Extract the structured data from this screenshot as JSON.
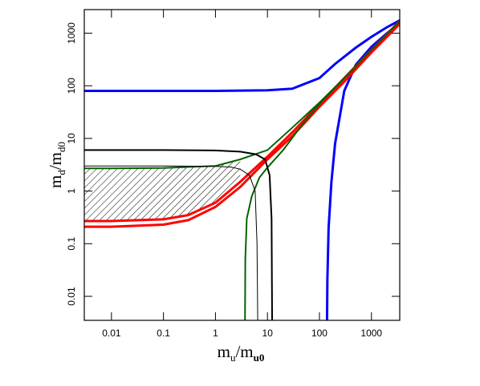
{
  "chart_data": {
    "type": "line",
    "xlabel": [
      "m",
      "u",
      "/m",
      "u0"
    ],
    "ylabel": [
      "m",
      "d",
      "/m",
      "d0"
    ],
    "xscale": "log",
    "yscale": "log",
    "xlim": [
      0.003,
      3500
    ],
    "ylim": [
      0.0035,
      2800
    ],
    "xticks": [
      0.01,
      0.1,
      1,
      10,
      100,
      1000
    ],
    "yticks": [
      0.01,
      0.1,
      1,
      10,
      100,
      1000
    ],
    "series": [
      {
        "color": "#0000ff",
        "width": 3,
        "x": [
          0.003,
          0.01,
          0.1,
          1,
          10,
          30,
          100,
          200,
          500,
          1000,
          2000,
          3500
        ],
        "values": [
          80,
          80,
          80,
          80,
          82,
          88,
          140,
          260,
          530,
          850,
          1300,
          1750
        ]
      },
      {
        "color": "#0000ff",
        "width": 3,
        "x": [
          140,
          142,
          150,
          170,
          200,
          300,
          500,
          1000,
          2000,
          3500
        ],
        "values": [
          0.0035,
          0.02,
          0.2,
          1.5,
          8,
          80,
          250,
          550,
          1000,
          1550
        ]
      },
      {
        "color": "#ff0000",
        "width": 3,
        "x": [
          0.003,
          0.01,
          0.1,
          0.3,
          1,
          3,
          10,
          30,
          100,
          300,
          1000,
          3500
        ],
        "values": [
          0.27,
          0.27,
          0.29,
          0.35,
          0.6,
          1.5,
          4.5,
          13,
          45,
          140,
          480,
          1700
        ]
      },
      {
        "color": "#ff0000",
        "width": 3,
        "x": [
          0.003,
          0.01,
          0.1,
          0.3,
          1,
          3,
          10,
          30,
          100,
          300,
          1000,
          3500
        ],
        "values": [
          0.21,
          0.21,
          0.23,
          0.28,
          0.5,
          1.2,
          4,
          11,
          40,
          120,
          430,
          1500
        ]
      },
      {
        "color": "#006400",
        "width": 2,
        "x": [
          0.003,
          0.01,
          0.1,
          1,
          3,
          10,
          30,
          100,
          300,
          1000,
          3500
        ],
        "values": [
          2.7,
          2.7,
          2.75,
          3,
          4,
          6,
          16,
          48,
          140,
          480,
          1700
        ]
      },
      {
        "color": "#006400",
        "width": 2,
        "x": [
          3.7,
          3.75,
          4,
          5,
          7,
          10,
          20,
          50,
          100,
          300
        ],
        "values": [
          0.0035,
          0.05,
          0.3,
          0.8,
          1.8,
          2.8,
          6,
          20,
          45,
          140
        ]
      },
      {
        "color": "#000000",
        "width": 2,
        "x": [
          0.003,
          0.01,
          0.1,
          1,
          3,
          6,
          9,
          11,
          12,
          12.3
        ],
        "values": [
          6,
          6,
          6,
          5.9,
          5.6,
          5,
          4,
          2,
          0.3,
          0.0035
        ]
      },
      {
        "color": "#000000",
        "width": 1,
        "x": [
          0.003,
          0.01,
          0.1,
          1,
          2,
          3,
          4.5,
          5.8,
          6.3,
          6.5
        ],
        "values": [
          3,
          3,
          3,
          2.95,
          2.85,
          2.6,
          2,
          1,
          0.1,
          0.0035
        ]
      }
    ]
  }
}
